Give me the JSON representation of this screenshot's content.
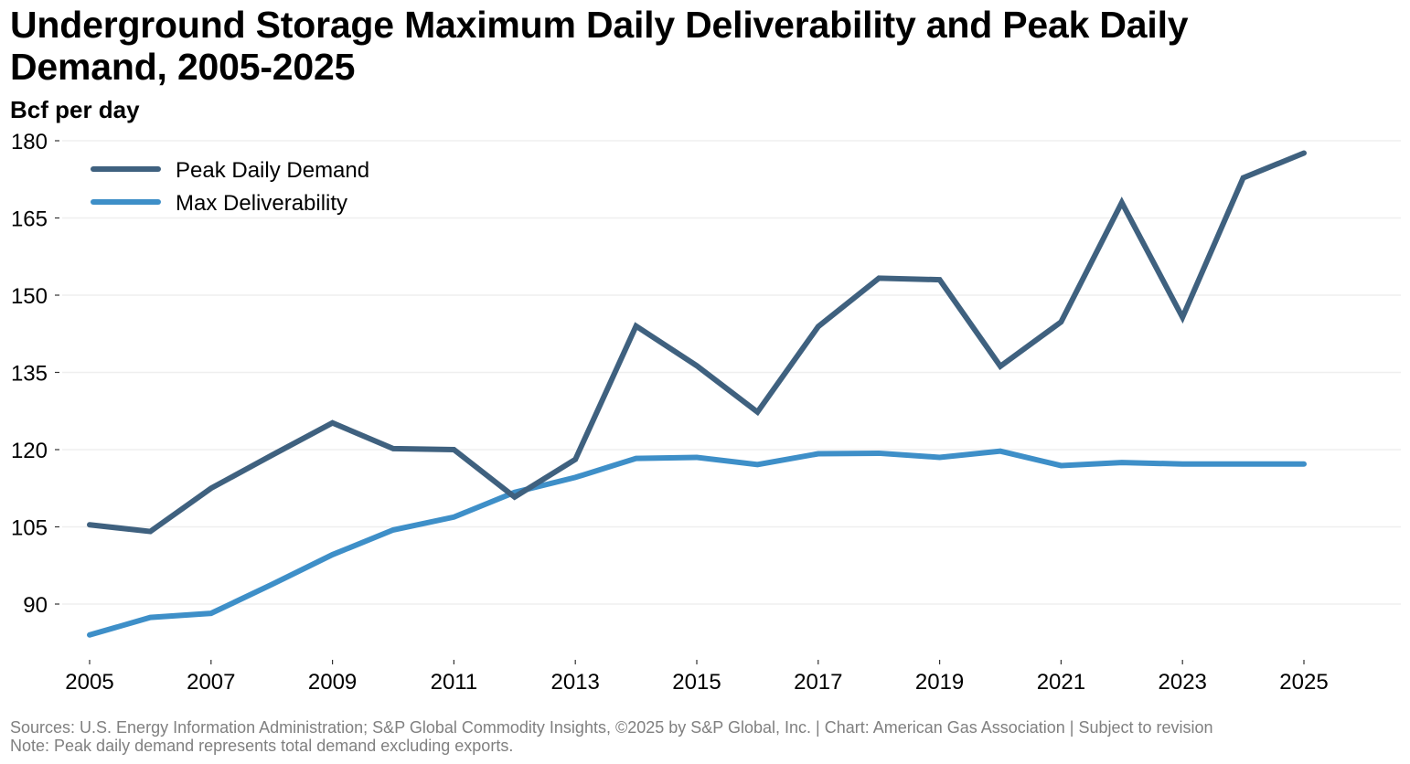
{
  "header": {
    "title": "Underground Storage Maximum Daily Deliverability and Peak Daily Demand, 2005-2025",
    "subtitle": "Bcf per day"
  },
  "footer": {
    "sources": "Sources: U.S. Energy Information Administration; S&P Global Commodity Insights, ©2025 by S&P Global, Inc. | Chart: American Gas Association | Subject to revision",
    "note": "Note: Peak daily demand represents total demand excluding exports."
  },
  "chart_data": {
    "type": "line",
    "title": "Underground Storage Maximum Daily Deliverability and Peak Daily Demand, 2005-2025",
    "xlabel": "",
    "ylabel": "Bcf per day",
    "x": [
      2005,
      2006,
      2007,
      2008,
      2009,
      2010,
      2011,
      2012,
      2013,
      2014,
      2015,
      2016,
      2017,
      2018,
      2019,
      2020,
      2021,
      2022,
      2023,
      2024,
      2025
    ],
    "xticks": [
      "2005",
      "2007",
      "2009",
      "2011",
      "2013",
      "2015",
      "2017",
      "2019",
      "2021",
      "2023",
      "2025"
    ],
    "xlim": [
      2005,
      2025
    ],
    "yticks": [
      "90",
      "105",
      "120",
      "135",
      "150",
      "165",
      "180"
    ],
    "ylim": [
      90,
      180
    ],
    "grid": "horizontal",
    "legend_position": "top-left",
    "series": [
      {
        "name": "Peak Daily Demand",
        "color": "#3f617f",
        "values": [
          105.4,
          104.1,
          112.5,
          118.9,
          125.2,
          120.2,
          120.0,
          110.8,
          118.1,
          144.0,
          136.3,
          127.3,
          143.9,
          153.3,
          153.0,
          136.2,
          144.8,
          168.0,
          145.7,
          172.8,
          177.6
        ]
      },
      {
        "name": "Max Deliverability",
        "color": "#3e8fc8",
        "values": [
          84.0,
          87.4,
          88.2,
          93.8,
          99.6,
          104.4,
          106.9,
          111.7,
          114.6,
          118.3,
          118.5,
          117.1,
          119.2,
          119.3,
          118.5,
          119.7,
          116.9,
          117.5,
          117.2,
          117.2,
          117.2
        ]
      }
    ]
  }
}
